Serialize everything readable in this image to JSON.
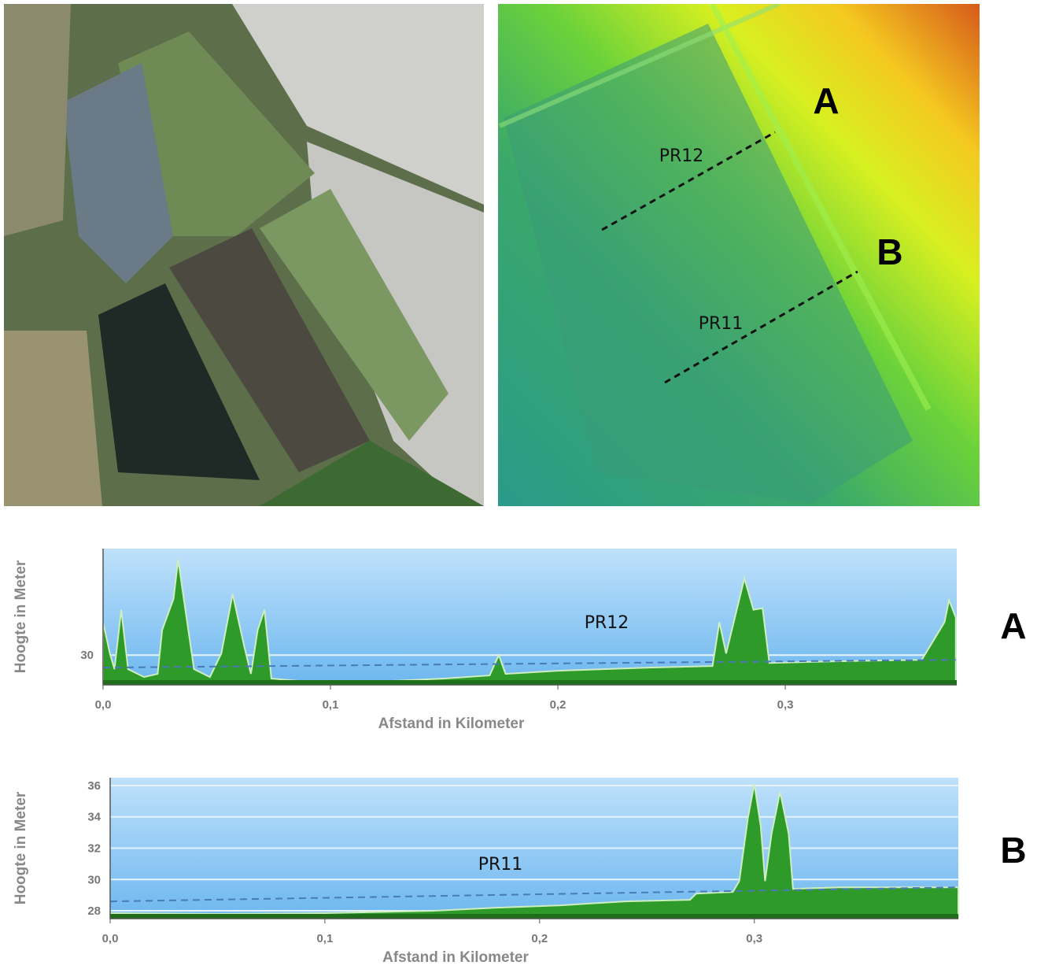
{
  "map_labels": {
    "point_a": "A",
    "point_b": "B",
    "profile_12": "PR12",
    "profile_11": "PR11"
  },
  "chart_data": [
    {
      "type": "area",
      "label": "A",
      "annotation": "PR12",
      "y_label": "Hoogte in Meter",
      "x_label": "Afstand in Kilometer",
      "xlim": [
        0,
        0.3754
      ],
      "ylim": [
        28.1,
        36.8
      ],
      "xticks": [
        {
          "value": 0,
          "label": "0,0"
        },
        {
          "value": 0.1,
          "label": "0,1"
        },
        {
          "value": 0.2,
          "label": "0,2"
        },
        {
          "value": 0.3,
          "label": "0,3"
        }
      ],
      "yticks": [
        30
      ],
      "x": [
        0,
        0.003,
        0.005,
        0.008,
        0.011,
        0.018,
        0.024,
        0.026,
        0.031,
        0.033,
        0.037,
        0.04,
        0.047,
        0.052,
        0.057,
        0.062,
        0.065,
        0.068,
        0.071,
        0.074,
        0.09,
        0.12,
        0.15,
        0.17,
        0.174,
        0.177,
        0.2,
        0.24,
        0.268,
        0.271,
        0.274,
        0.279,
        0.282,
        0.286,
        0.29,
        0.293,
        0.32,
        0.36,
        0.37,
        0.372,
        0.375
      ],
      "series": [
        {
          "color": "#2e9a2a",
          "values": [
            32.1,
            30.1,
            29.1,
            32.9,
            29.1,
            28.6,
            28.8,
            31.6,
            33.6,
            36.1,
            32.1,
            29.1,
            28.6,
            30.1,
            33.9,
            30.6,
            28.8,
            31.6,
            32.9,
            28.5,
            28.3,
            28.3,
            28.5,
            28.7,
            30.0,
            28.8,
            29.0,
            29.2,
            29.3,
            32.1,
            30.1,
            33.1,
            34.9,
            32.9,
            33.0,
            29.5,
            29.6,
            29.7,
            32.1,
            33.5,
            32.4
          ]
        },
        {
          "color": "#4a7ab8",
          "dashed": true,
          "x": [
            0,
            0.375
          ],
          "values": [
            29.2,
            29.7
          ]
        }
      ]
    },
    {
      "type": "area",
      "label": "B",
      "annotation": "PR11",
      "y_label": "Hoogte in Meter",
      "x_label": "Afstand in Kilometer",
      "xlim": [
        0,
        0.395
      ],
      "ylim": [
        27.5,
        36.5
      ],
      "xticks": [
        {
          "value": 0,
          "label": "0,0"
        },
        {
          "value": 0.1,
          "label": "0,1"
        },
        {
          "value": 0.2,
          "label": "0,2"
        },
        {
          "value": 0.3,
          "label": "0,3"
        }
      ],
      "yticks": [
        28,
        30,
        32,
        34,
        36
      ],
      "x": [
        0,
        0.05,
        0.1,
        0.15,
        0.18,
        0.21,
        0.24,
        0.27,
        0.273,
        0.29,
        0.293,
        0.297,
        0.3,
        0.303,
        0.305,
        0.308,
        0.312,
        0.316,
        0.318,
        0.34,
        0.395
      ],
      "series": [
        {
          "color": "#2e9a2a",
          "values": [
            27.85,
            27.8,
            27.85,
            28.0,
            28.2,
            28.35,
            28.6,
            28.7,
            29.1,
            29.2,
            29.9,
            33.9,
            36.1,
            33.4,
            29.9,
            32.9,
            35.6,
            32.9,
            29.4,
            29.5,
            29.5
          ]
        },
        {
          "color": "#4a7ab8",
          "dashed": true,
          "x": [
            0,
            0.395
          ],
          "values": [
            28.6,
            29.5
          ]
        }
      ]
    }
  ]
}
